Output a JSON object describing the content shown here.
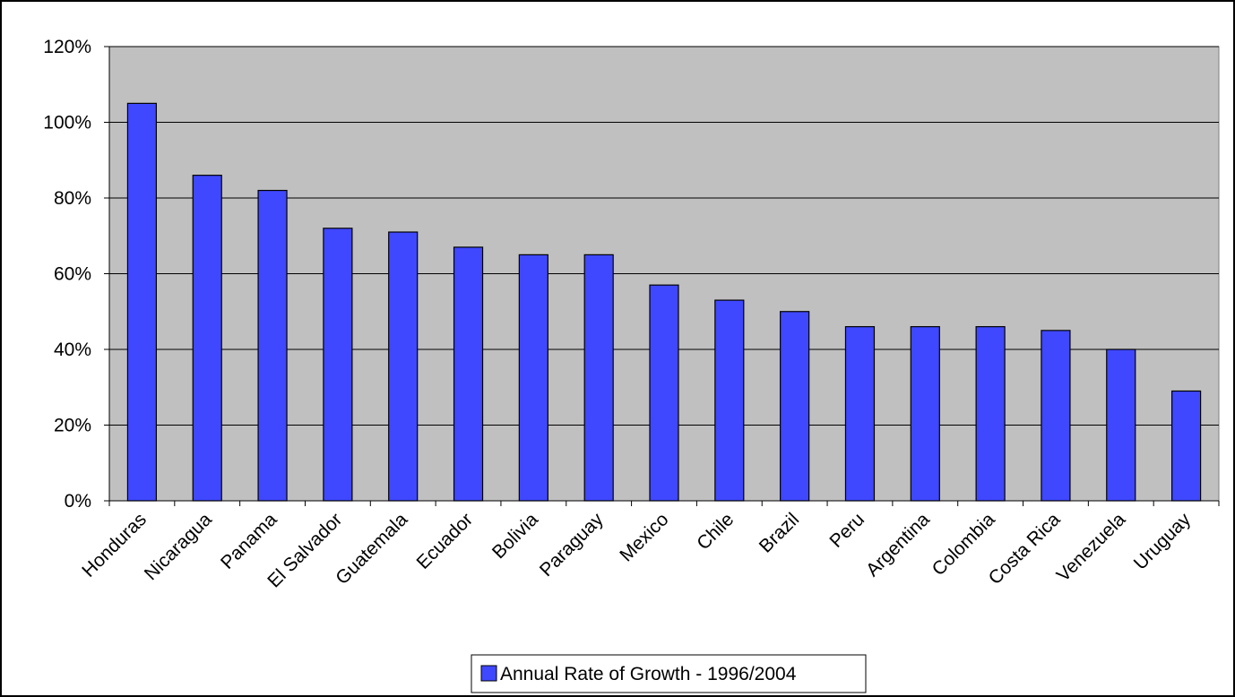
{
  "chart_data": {
    "type": "bar",
    "title": "",
    "xlabel": "",
    "ylabel": "",
    "categories": [
      "Honduras",
      "Nicaragua",
      "Panama",
      "El Salvador",
      "Guatemala",
      "Ecuador",
      "Bolivia",
      "Paraguay",
      "Mexico",
      "Chile",
      "Brazil",
      "Peru",
      "Argentina",
      "Colombia",
      "Costa Rica",
      "Venezuela",
      "Uruguay"
    ],
    "series": [
      {
        "name": "Annual Rate of Growth - 1996/2004",
        "values": [
          105,
          86,
          82,
          72,
          71,
          67,
          65,
          65,
          57,
          53,
          50,
          46,
          46,
          46,
          45,
          40,
          29
        ]
      }
    ],
    "ylim": [
      0,
      120
    ],
    "y_ticks": [
      0,
      20,
      40,
      60,
      80,
      100,
      120
    ],
    "y_tick_labels": [
      "0%",
      "20%",
      "40%",
      "60%",
      "80%",
      "100%",
      "120%"
    ],
    "grid": true,
    "legend_position": "bottom",
    "colors": {
      "bar_fill": "#3f48ff",
      "bar_stroke": "#000000",
      "plot_background": "#c0c0c0",
      "gridline": "#000000",
      "page_background": "#ffffff"
    }
  }
}
